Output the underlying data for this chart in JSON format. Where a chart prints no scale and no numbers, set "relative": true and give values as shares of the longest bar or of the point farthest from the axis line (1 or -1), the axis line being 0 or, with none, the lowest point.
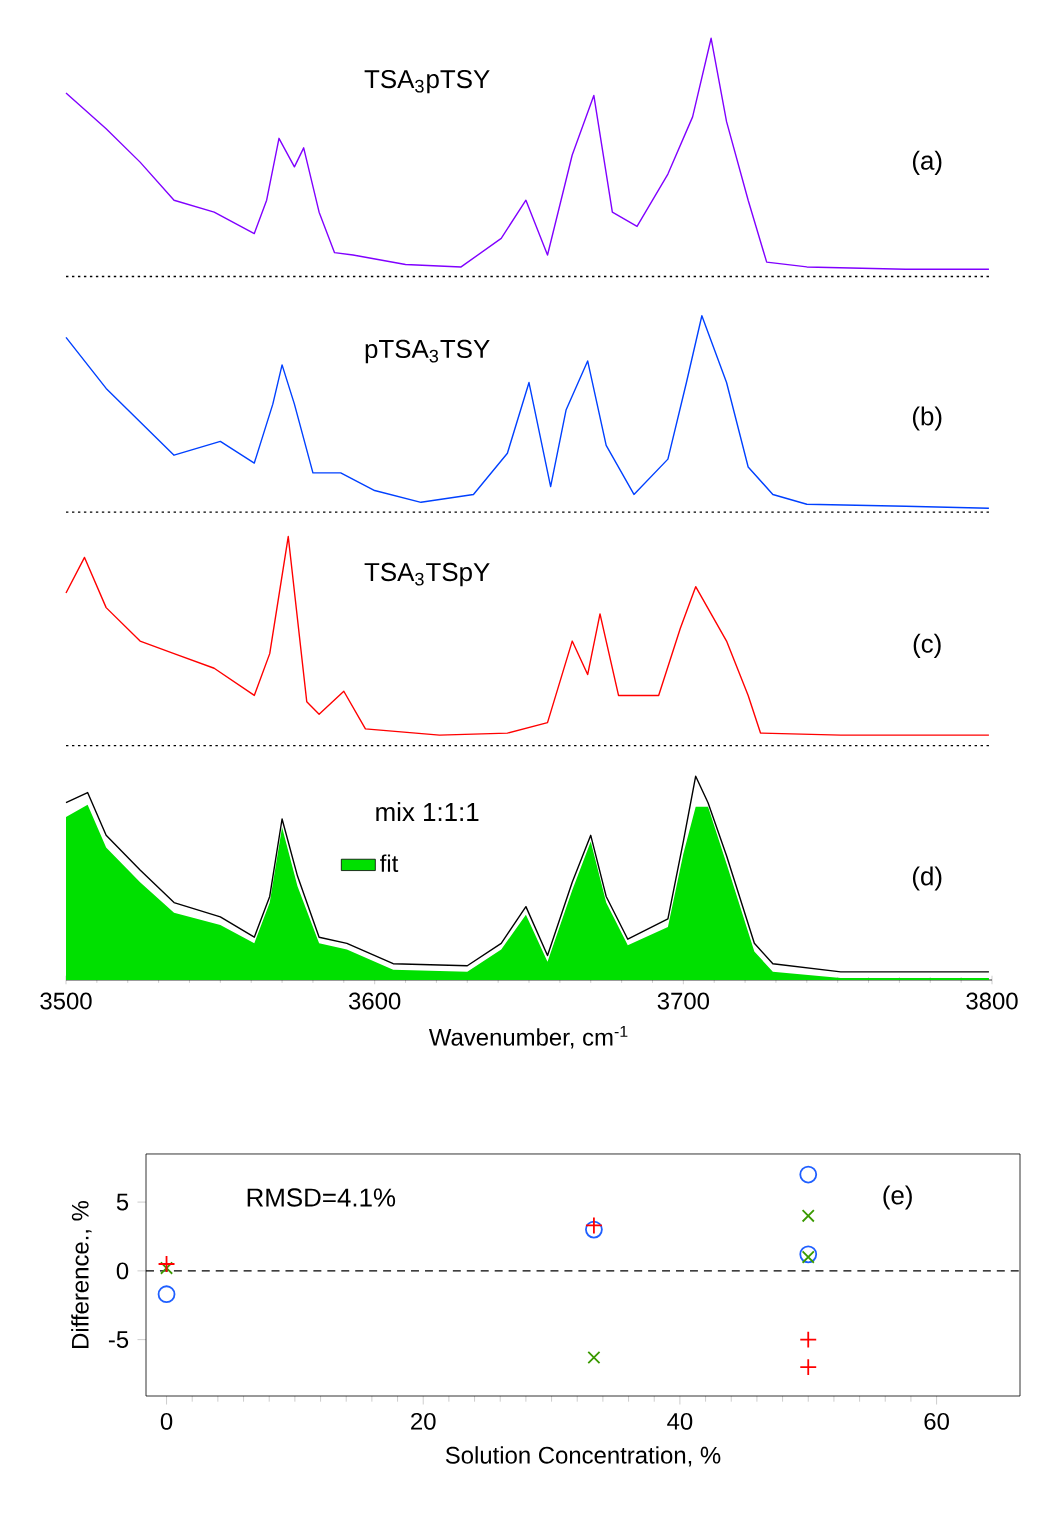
{
  "chart_data": [
    {
      "type": "line",
      "relative": true,
      "xlim": [
        3500,
        3800
      ],
      "tick_labels": false,
      "series": [
        {
          "color": "#8000ff",
          "x": [
            3500,
            3513,
            3524,
            3535,
            3548,
            3561,
            3565,
            3569,
            3574,
            3577,
            3582,
            3587,
            3593,
            3610,
            3628,
            3641,
            3649,
            3656,
            3664,
            3671,
            3677,
            3685,
            3695,
            3703,
            3709,
            3714,
            3721,
            3727,
            3740,
            3772,
            3799
          ],
          "values": [
            0.77,
            0.62,
            0.48,
            0.32,
            0.27,
            0.18,
            0.32,
            0.58,
            0.46,
            0.54,
            0.27,
            0.1,
            0.09,
            0.05,
            0.04,
            0.16,
            0.32,
            0.09,
            0.51,
            0.76,
            0.27,
            0.21,
            0.43,
            0.67,
            1,
            0.65,
            0.32,
            0.06,
            0.04,
            0.03,
            0.03
          ]
        }
      ],
      "ref_lines": [
        {
          "axis": "y",
          "value": 0,
          "line_style": "dotted"
        }
      ],
      "annotations": [
        "TSA$_{3}$pTSY",
        "(a)"
      ]
    },
    {
      "type": "line",
      "relative": true,
      "xlim": [
        3500,
        3800
      ],
      "tick_labels": false,
      "series": [
        {
          "color": "#0040ff",
          "x": [
            3500,
            3513,
            3524,
            3535,
            3550,
            3561,
            3567,
            3570,
            3574,
            3580,
            3589,
            3600,
            3615,
            3632,
            3643,
            3650,
            3657,
            3662,
            3669,
            3675,
            3684,
            3695,
            3701,
            3706,
            3714,
            3721,
            3729,
            3740,
            3772,
            3799
          ],
          "values": [
            0.89,
            0.63,
            0.46,
            0.29,
            0.36,
            0.25,
            0.55,
            0.75,
            0.55,
            0.2,
            0.2,
            0.11,
            0.05,
            0.09,
            0.3,
            0.66,
            0.13,
            0.52,
            0.77,
            0.34,
            0.09,
            0.27,
            0.66,
            1,
            0.66,
            0.23,
            0.09,
            0.04,
            0.03,
            0.02
          ]
        }
      ],
      "ref_lines": [
        {
          "axis": "y",
          "value": 0,
          "line_style": "dotted"
        }
      ],
      "annotations": [
        "pTSA$_{3}$TSY",
        "(b)"
      ]
    },
    {
      "type": "line",
      "relative": true,
      "xlim": [
        3500,
        3800
      ],
      "tick_labels": false,
      "series": [
        {
          "color": "#ff0000",
          "x": [
            3500,
            3506,
            3513,
            3524,
            3535,
            3548,
            3561,
            3566,
            3572,
            3578,
            3582,
            3590,
            3597,
            3621,
            3643,
            3656,
            3664,
            3669,
            3673,
            3679,
            3692,
            3699,
            3704,
            3714,
            3721,
            3725,
            3751,
            3799
          ],
          "values": [
            0.73,
            0.9,
            0.66,
            0.5,
            0.44,
            0.37,
            0.24,
            0.44,
            1,
            0.21,
            0.15,
            0.26,
            0.08,
            0.05,
            0.06,
            0.11,
            0.5,
            0.34,
            0.63,
            0.24,
            0.24,
            0.56,
            0.76,
            0.5,
            0.24,
            0.06,
            0.05,
            0.05
          ]
        }
      ],
      "ref_lines": [
        {
          "axis": "y",
          "value": 0,
          "line_style": "dotted"
        }
      ],
      "annotations": [
        "TSA$_{3}$TSpY",
        "(c)"
      ]
    },
    {
      "type": "line",
      "relative": true,
      "xlim": [
        3500,
        3800
      ],
      "xticks": [
        3500,
        3600,
        3700,
        3800
      ],
      "tick_labels": "x",
      "xlabel": "Wavenumber, cm$^{-1}$",
      "legend": "top",
      "series": [
        {
          "name": "fit",
          "type": "area",
          "color": "#00e000",
          "x": [
            3500,
            3507,
            3513,
            3524,
            3535,
            3550,
            3561,
            3566,
            3570,
            3575,
            3582,
            3591,
            3606,
            3630,
            3641,
            3649,
            3656,
            3664,
            3670,
            3675,
            3682,
            3695,
            3700,
            3704,
            3708,
            3714,
            3723,
            3729,
            3751,
            3799
          ],
          "values": [
            0.8,
            0.86,
            0.65,
            0.48,
            0.33,
            0.27,
            0.18,
            0.38,
            0.75,
            0.46,
            0.18,
            0.15,
            0.05,
            0.04,
            0.15,
            0.32,
            0.09,
            0.44,
            0.68,
            0.38,
            0.17,
            0.26,
            0.62,
            0.85,
            0.85,
            0.57,
            0.14,
            0.04,
            0.01,
            0.01
          ]
        },
        {
          "color": "#000000",
          "x": [
            3500,
            3507,
            3513,
            3524,
            3535,
            3550,
            3561,
            3566,
            3570,
            3575,
            3582,
            3591,
            3606,
            3630,
            3641,
            3649,
            3656,
            3664,
            3670,
            3675,
            3682,
            3695,
            3700,
            3704,
            3708,
            3714,
            3723,
            3729,
            3751,
            3799
          ],
          "values": [
            0.87,
            0.92,
            0.71,
            0.54,
            0.38,
            0.31,
            0.21,
            0.41,
            0.79,
            0.51,
            0.21,
            0.18,
            0.08,
            0.07,
            0.18,
            0.36,
            0.12,
            0.48,
            0.71,
            0.41,
            0.2,
            0.3,
            0.68,
            1,
            0.87,
            0.61,
            0.18,
            0.08,
            0.04,
            0.04
          ]
        }
      ],
      "annotations": [
        "mix 1:1:1",
        "(d)"
      ]
    },
    {
      "type": "scatter",
      "xlim": [
        -1.6,
        66.5
      ],
      "ylim": [
        -9.1,
        8.5
      ],
      "xticks": [
        0,
        20,
        40,
        60
      ],
      "yticks": [
        -5,
        0,
        5
      ],
      "xlabel": "Solution Concentration, %",
      "ylabel": "Difference., %",
      "series": [
        {
          "color": "#1f5fff",
          "marker": "circle",
          "x": [
            0,
            33.3,
            50,
            50
          ],
          "values": [
            -1.7,
            3,
            7,
            1.2
          ]
        },
        {
          "color": "#3a9a00",
          "marker": "cross",
          "x": [
            0,
            33.3,
            50,
            50
          ],
          "values": [
            0.2,
            -6.3,
            4,
            1
          ]
        },
        {
          "color": "#ff0000",
          "marker": "plus",
          "x": [
            0,
            33.3,
            50,
            50
          ],
          "values": [
            0.5,
            3.3,
            -5,
            -7
          ]
        }
      ],
      "ref_lines": [
        {
          "axis": "y",
          "value": 0,
          "line_style": "dashed"
        }
      ],
      "annotations": [
        "RMSD=4.1%",
        "(e)"
      ]
    }
  ]
}
